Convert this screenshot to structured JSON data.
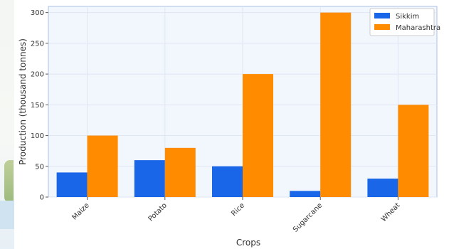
{
  "chart_data": {
    "type": "bar",
    "xlabel": "Crops",
    "ylabel": "Production (thousand tonnes)",
    "categories": [
      "Maize",
      "Potato",
      "Rice",
      "Sugarcane",
      "Wheat"
    ],
    "series": [
      {
        "name": "Sikkim",
        "color": "#1a66e8",
        "values": [
          40,
          60,
          50,
          10,
          30
        ]
      },
      {
        "name": "Maharashtra",
        "color": "#ff8c00",
        "values": [
          100,
          80,
          200,
          300,
          150
        ]
      }
    ],
    "ylim": [
      0,
      310
    ],
    "yticks": [
      "0",
      "50",
      "100",
      "150",
      "200",
      "250",
      "300"
    ],
    "grid": true,
    "legend": "top-right",
    "plot_background": "#f2f6fd"
  }
}
